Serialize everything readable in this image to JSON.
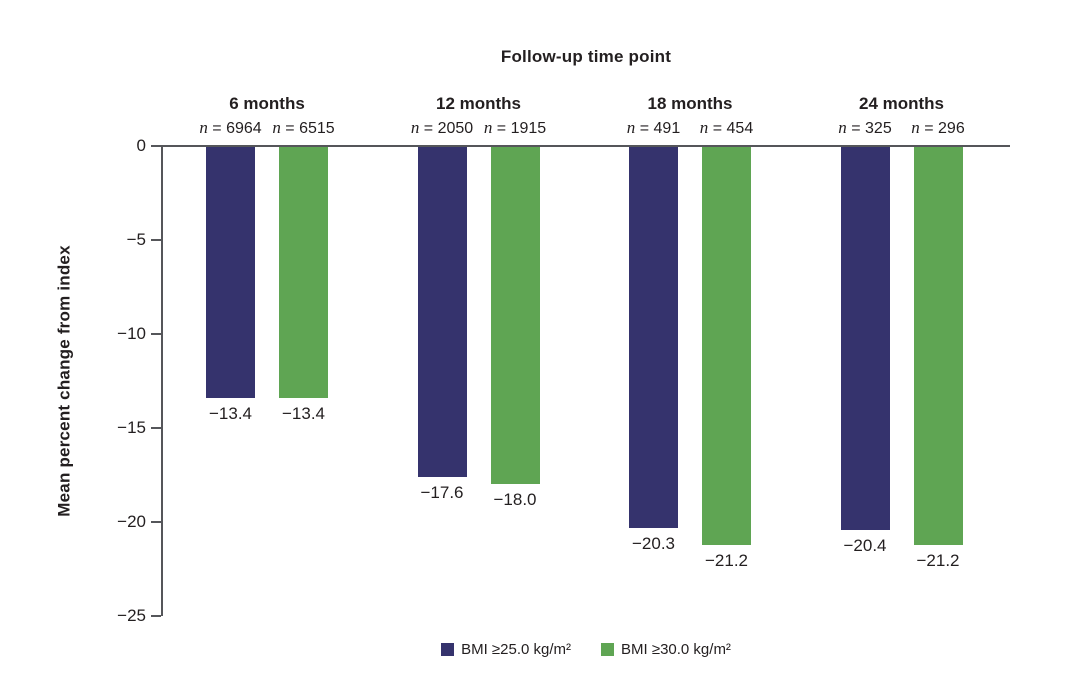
{
  "figure": {
    "title": "Follow-up time point",
    "ylabel": "Mean percent change from index"
  },
  "chart_data": {
    "type": "bar",
    "title": "Follow-up time point",
    "xlabel": "",
    "ylabel": "Mean percent change from index",
    "ylim": [
      -25,
      0
    ],
    "yticks": [
      0,
      -5,
      -10,
      -15,
      -20,
      -25
    ],
    "ytick_labels": [
      "0",
      "−5",
      "−10",
      "−15",
      "−20",
      "−25"
    ],
    "grid": false,
    "legend_position": "bottom",
    "categories": [
      "6 months",
      "12 months",
      "18 months",
      "24 months"
    ],
    "series": [
      {
        "name": "BMI ≥25.0 kg/m²",
        "color": "#35336d",
        "values": [
          -13.4,
          -17.6,
          -20.3,
          -20.4
        ],
        "value_labels": [
          "−13.4",
          "−17.6",
          "−20.3",
          "−20.4"
        ],
        "n_values": [
          "6964",
          "2050",
          "491",
          "325"
        ]
      },
      {
        "name": "BMI ≥30.0 kg/m²",
        "color": "#5fa553",
        "values": [
          -13.4,
          -18.0,
          -21.2,
          -21.2
        ],
        "value_labels": [
          "−13.4",
          "−18.0",
          "−21.2",
          "−21.2"
        ],
        "n_values": [
          "6515",
          "1915",
          "454",
          "296"
        ]
      }
    ]
  }
}
